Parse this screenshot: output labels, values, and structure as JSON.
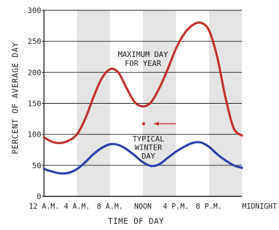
{
  "chart_data": {
    "type": "line",
    "xlabel": "TIME OF DAY",
    "ylabel": "PERCENT OF AVERAGE DAY",
    "xlim": [
      0,
      24
    ],
    "ylim": [
      0,
      300
    ],
    "x_ticks": [
      {
        "x": 0,
        "label": "12 A.M."
      },
      {
        "x": 4,
        "label": "4 A.M."
      },
      {
        "x": 8,
        "label": "8 A.M."
      },
      {
        "x": 12,
        "label": "NOON"
      },
      {
        "x": 16,
        "label": "4 P.M."
      },
      {
        "x": 20,
        "label": "8 P.M."
      },
      {
        "x": 24,
        "label": "MIDNIGHT"
      }
    ],
    "y_ticks": [
      0,
      50,
      100,
      150,
      200,
      250,
      300
    ],
    "shaded_bands": [
      [
        4,
        8
      ],
      [
        12,
        16
      ],
      [
        20,
        24
      ]
    ],
    "grid": "horizontal",
    "series": [
      {
        "name": "MAXIMUM DAY FOR YEAR",
        "color": "#c0302a",
        "x": [
          0,
          1,
          2,
          3,
          4,
          5,
          6,
          7,
          8,
          9,
          10,
          11,
          12,
          13,
          14,
          15,
          16,
          17,
          18,
          19,
          20,
          21,
          22,
          23,
          24
        ],
        "y": [
          95,
          88,
          86,
          90,
          100,
          125,
          160,
          190,
          205,
          200,
          175,
          152,
          145,
          152,
          175,
          205,
          238,
          262,
          276,
          280,
          268,
          225,
          160,
          110,
          98
        ]
      },
      {
        "name": "TYPICAL WINTER DAY",
        "color": "#2a3fa8",
        "x": [
          0,
          1,
          2,
          3,
          4,
          5,
          6,
          7,
          8,
          9,
          10,
          11,
          12,
          13,
          14,
          15,
          16,
          17,
          18,
          19,
          20,
          21,
          22,
          23,
          24
        ],
        "y": [
          44,
          40,
          37,
          38,
          44,
          55,
          68,
          78,
          84,
          83,
          76,
          66,
          55,
          49,
          52,
          62,
          72,
          80,
          86,
          87,
          80,
          68,
          58,
          50,
          46
        ]
      }
    ],
    "annotations": [
      {
        "lines": [
          "MAXIMUM DAY",
          "FOR YEAR"
        ],
        "series": 0
      },
      {
        "lines": [
          "TYPICAL",
          "WINTER",
          "DAY"
        ],
        "series": 1
      }
    ],
    "arrow_marker": {
      "x": 12.5,
      "y": 117
    }
  }
}
